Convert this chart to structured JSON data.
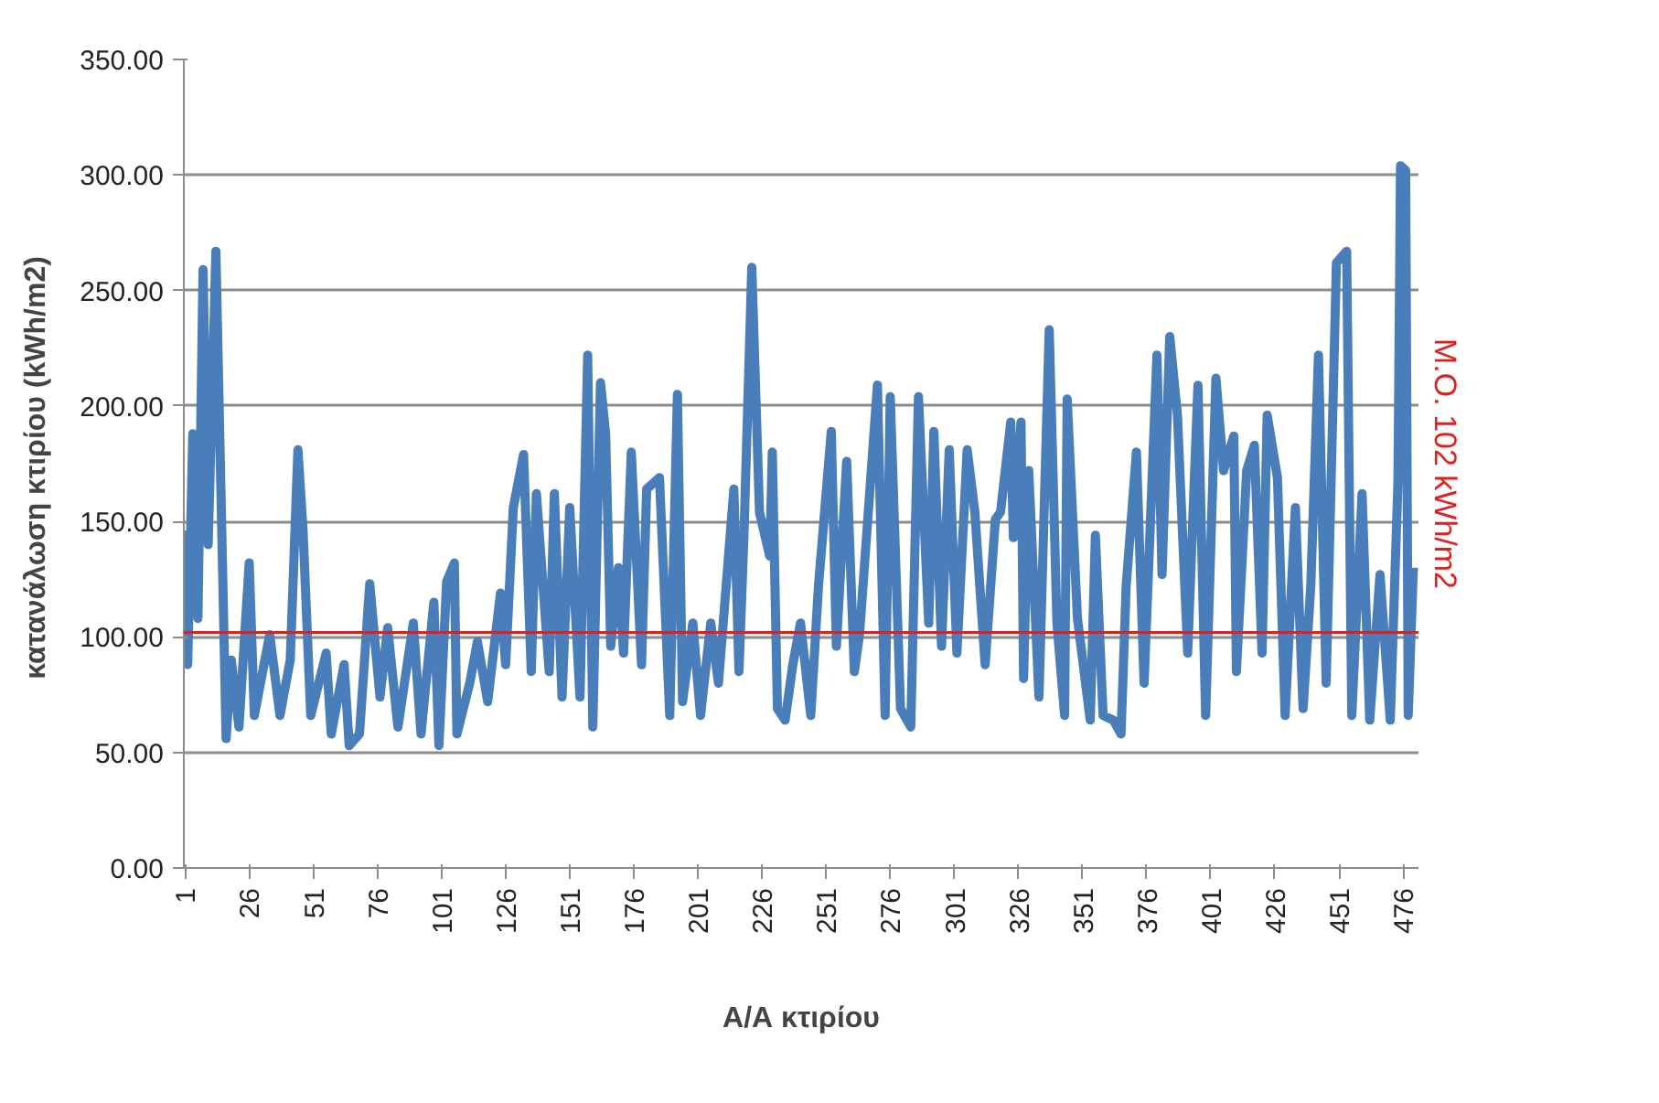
{
  "chart_data": {
    "type": "line",
    "xlabel": "Α/Α κτιρίου",
    "ylabel": "κατανάλωση  κτιρίου (kWh/m2)",
    "x": [
      1,
      2,
      4,
      6,
      8,
      10,
      13,
      17,
      19,
      22,
      26,
      28,
      34,
      38,
      42,
      45,
      47,
      50,
      56,
      58,
      63,
      65,
      69,
      73,
      77,
      80,
      84,
      90,
      93,
      98,
      100,
      103,
      106,
      107,
      112,
      115,
      119,
      124,
      126,
      129,
      133,
      136,
      138,
      143,
      145,
      148,
      151,
      155,
      158,
      160,
      163,
      165,
      167,
      170,
      172,
      175,
      179,
      181,
      186,
      190,
      193,
      195,
      199,
      202,
      206,
      209,
      215,
      217,
      219,
      222,
      225,
      229,
      230,
      232,
      235,
      238,
      241,
      245,
      248,
      253,
      255,
      259,
      262,
      264,
      271,
      274,
      276,
      280,
      284,
      287,
      291,
      293,
      296,
      299,
      302,
      306,
      309,
      313,
      317,
      319,
      323,
      324,
      327,
      328,
      330,
      334,
      336,
      338,
      341,
      344,
      345,
      349,
      354,
      356,
      359,
      363,
      366,
      368,
      372,
      375,
      380,
      382,
      385,
      388,
      392,
      396,
      399,
      403,
      406,
      410,
      411,
      415,
      418,
      421,
      423,
      427,
      430,
      434,
      437,
      440,
      443,
      446,
      450,
      454,
      456,
      460,
      463,
      467,
      471,
      474,
      475,
      477,
      478,
      480
    ],
    "series": [
      {
        "color": "#4a7ebb",
        "values": [
          146,
          88,
          188,
          108,
          259,
          140,
          267,
          56,
          90,
          61,
          132,
          66,
          101,
          66,
          90,
          181,
          146,
          66,
          93,
          58,
          88,
          53,
          58,
          123,
          74,
          104,
          61,
          106,
          58,
          115,
          53,
          124,
          132,
          58,
          80,
          98,
          72,
          119,
          88,
          156,
          179,
          85,
          162,
          85,
          162,
          74,
          156,
          74,
          222,
          61,
          210,
          188,
          96,
          130,
          93,
          180,
          88,
          164,
          169,
          66,
          205,
          72,
          106,
          66,
          106,
          80,
          164,
          85,
          146,
          260,
          154,
          135,
          180,
          69,
          64,
          88,
          106,
          66,
          122,
          189,
          96,
          176,
          85,
          101,
          209,
          66,
          204,
          69,
          61,
          204,
          106,
          189,
          96,
          181,
          93,
          181,
          154,
          88,
          151,
          154,
          193,
          143,
          193,
          82,
          172,
          74,
          154,
          233,
          106,
          66,
          203,
          108,
          64,
          144,
          66,
          64,
          58,
          122,
          180,
          80,
          222,
          127,
          230,
          196,
          93,
          209,
          66,
          212,
          172,
          187,
          85,
          172,
          183,
          93,
          196,
          169,
          66,
          156,
          69,
          122,
          222,
          80,
          262,
          267,
          66,
          162,
          64,
          127,
          64,
          167,
          304,
          302,
          66,
          130
        ]
      }
    ],
    "xlim": [
      0.5,
      482
    ],
    "ylim": [
      0,
      350
    ],
    "xticks": [
      1,
      26,
      51,
      76,
      101,
      126,
      151,
      176,
      201,
      226,
      251,
      276,
      301,
      326,
      351,
      376,
      401,
      426,
      451,
      476
    ],
    "yticks": [
      {
        "value": 0,
        "label": "0.00"
      },
      {
        "value": 50,
        "label": "50.00"
      },
      {
        "value": 100,
        "label": "100.00"
      },
      {
        "value": 150,
        "label": "150.00"
      },
      {
        "value": 200,
        "label": "200.00"
      },
      {
        "value": 250,
        "label": "250.00"
      },
      {
        "value": 300,
        "label": "300.00"
      },
      {
        "value": 350,
        "label": "350.00"
      }
    ],
    "grid": "y",
    "marker": "none",
    "line_style": "solid",
    "ref_lines": [
      {
        "axis": "y",
        "value": 102,
        "label": "Μ.Ο. 102 kWh/m2",
        "color": "#e02020"
      }
    ]
  }
}
